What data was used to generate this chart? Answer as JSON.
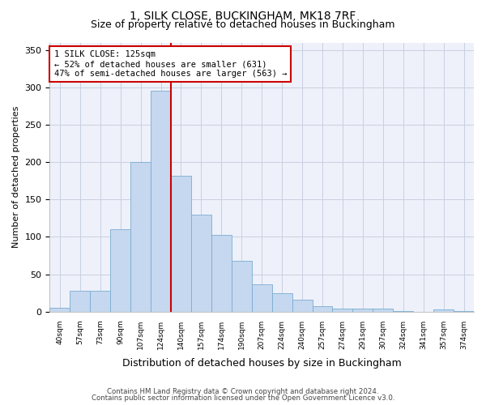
{
  "title_line1": "1, SILK CLOSE, BUCKINGHAM, MK18 7RF",
  "title_line2": "Size of property relative to detached houses in Buckingham",
  "xlabel": "Distribution of detached houses by size in Buckingham",
  "ylabel": "Number of detached properties",
  "categories": [
    "40sqm",
    "57sqm",
    "73sqm",
    "90sqm",
    "107sqm",
    "124sqm",
    "140sqm",
    "157sqm",
    "174sqm",
    "190sqm",
    "207sqm",
    "224sqm",
    "240sqm",
    "257sqm",
    "274sqm",
    "291sqm",
    "307sqm",
    "324sqm",
    "341sqm",
    "357sqm",
    "374sqm"
  ],
  "values": [
    5,
    28,
    28,
    110,
    200,
    295,
    182,
    130,
    103,
    68,
    37,
    25,
    16,
    7,
    4,
    4,
    4,
    1,
    0,
    3,
    1
  ],
  "bar_color": "#c5d8ef",
  "bar_edge_color": "#7aabd1",
  "vline_color": "#cc0000",
  "annotation_text": "1 SILK CLOSE: 125sqm\n← 52% of detached houses are smaller (631)\n47% of semi-detached houses are larger (563) →",
  "annotation_box_color": "#ffffff",
  "annotation_box_edge": "#cc0000",
  "ylim": [
    0,
    360
  ],
  "yticks": [
    0,
    50,
    100,
    150,
    200,
    250,
    300,
    350
  ],
  "footer_line1": "Contains HM Land Registry data © Crown copyright and database right 2024.",
  "footer_line2": "Contains public sector information licensed under the Open Government Licence v3.0.",
  "plot_bg_color": "#eef1fa",
  "grid_color": "#c8cfe0",
  "title1_fontsize": 10,
  "title2_fontsize": 9,
  "vline_x_index": 5,
  "vline_x_offset": 0.5
}
